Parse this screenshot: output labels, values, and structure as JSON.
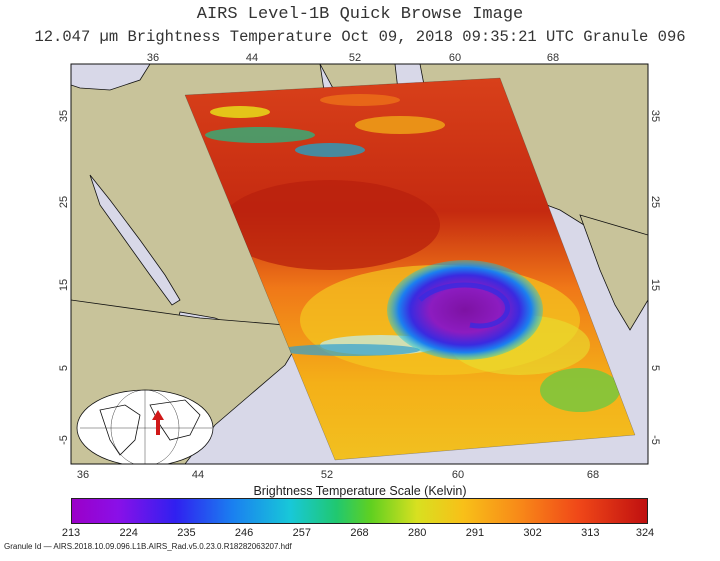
{
  "header": {
    "title": "AIRS Level-1B Quick Browse Image",
    "subtitle": "12.047 µm Brightness Temperature   Oct 09, 2018 09:35:21 UTC   Granule 096"
  },
  "map": {
    "lon_ticks": [
      "36",
      "44",
      "52",
      "60",
      "68"
    ],
    "lat_ticks_left": [
      "35",
      "25",
      "15",
      "5",
      "-5"
    ],
    "lat_ticks_right": [
      "35",
      "25",
      "15",
      "5",
      "-5"
    ]
  },
  "colorbar": {
    "title": "Brightness Temperature Scale (Kelvin)",
    "labels": [
      "213",
      "224",
      "235",
      "246",
      "257",
      "268",
      "280",
      "291",
      "302",
      "313",
      "324"
    ]
  },
  "footer": {
    "granule_id": "Granule Id — AIRS.2018.10.09.096.L1B.AIRS_Rad.v5.0.23.0.R18282063207.hdf"
  },
  "colors": {
    "land": "#c8c39a",
    "ocean": "#d8d8e8",
    "outline": "#111111"
  },
  "icons": [
    "inset-globe-icon",
    "storm-location-arrow-icon"
  ]
}
